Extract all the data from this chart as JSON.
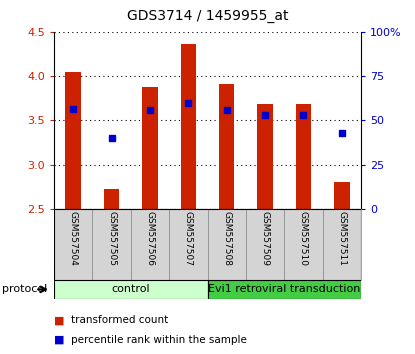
{
  "title": "GDS3714 / 1459955_at",
  "samples": [
    "GSM557504",
    "GSM557505",
    "GSM557506",
    "GSM557507",
    "GSM557508",
    "GSM557509",
    "GSM557510",
    "GSM557511"
  ],
  "bar_heights": [
    4.05,
    2.72,
    3.88,
    4.36,
    3.91,
    3.68,
    3.69,
    2.8
  ],
  "bar_bottom": 2.5,
  "blue_dot_y": [
    3.63,
    3.3,
    3.62,
    3.7,
    3.62,
    3.56,
    3.56,
    3.36
  ],
  "ylim": [
    2.5,
    4.5
  ],
  "yticks_left": [
    2.5,
    3.0,
    3.5,
    4.0,
    4.5
  ],
  "yticks_right": [
    0,
    25,
    50,
    75,
    100
  ],
  "bar_color": "#cc2200",
  "dot_color": "#0000cc",
  "control_label": "control",
  "evi1_label": "Evi1 retroviral transduction",
  "control_color": "#ccffcc",
  "evi1_color": "#44cc44",
  "protocol_label": "protocol",
  "legend1": "transformed count",
  "legend2": "percentile rank within the sample",
  "tick_color_left": "#cc2200",
  "tick_color_right": "#0000cc",
  "bar_width": 0.4
}
